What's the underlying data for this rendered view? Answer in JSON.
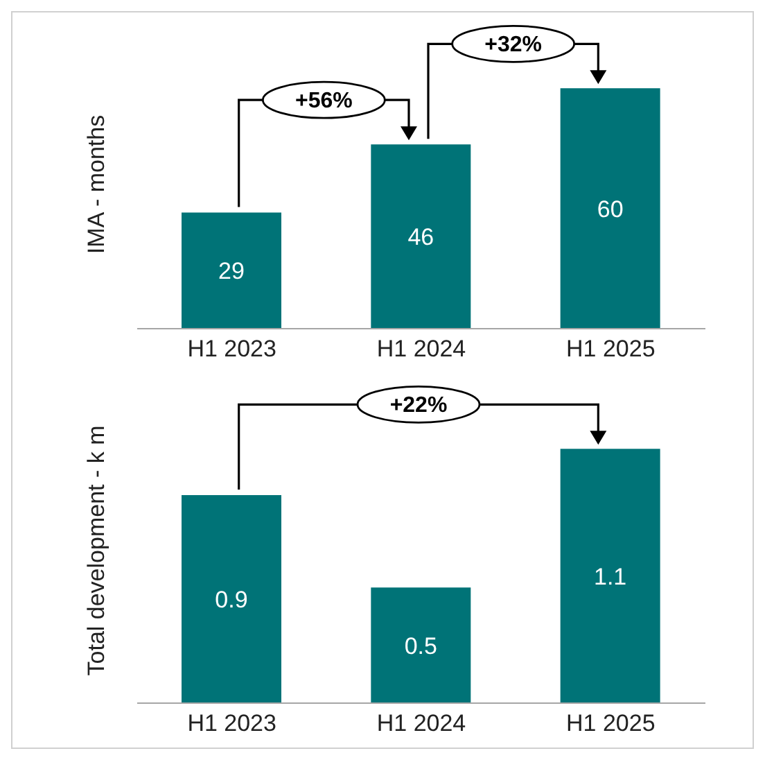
{
  "chart_data": [
    {
      "type": "bar",
      "ylabel": "IMA - months",
      "categories": [
        "H1 2023",
        "H1 2024",
        "H1 2025"
      ],
      "values": [
        29,
        46,
        60
      ],
      "color": "#007377",
      "data_labels": true,
      "annotations": [
        "+56%",
        "+32%"
      ]
    },
    {
      "type": "bar",
      "ylabel": "Total development - k m",
      "categories": [
        "H1 2023",
        "H1 2024",
        "H1 2025"
      ],
      "values": [
        0.9,
        0.5,
        1.1
      ],
      "color": "#007377",
      "data_labels": true,
      "annotations": [
        "+22%"
      ]
    }
  ]
}
